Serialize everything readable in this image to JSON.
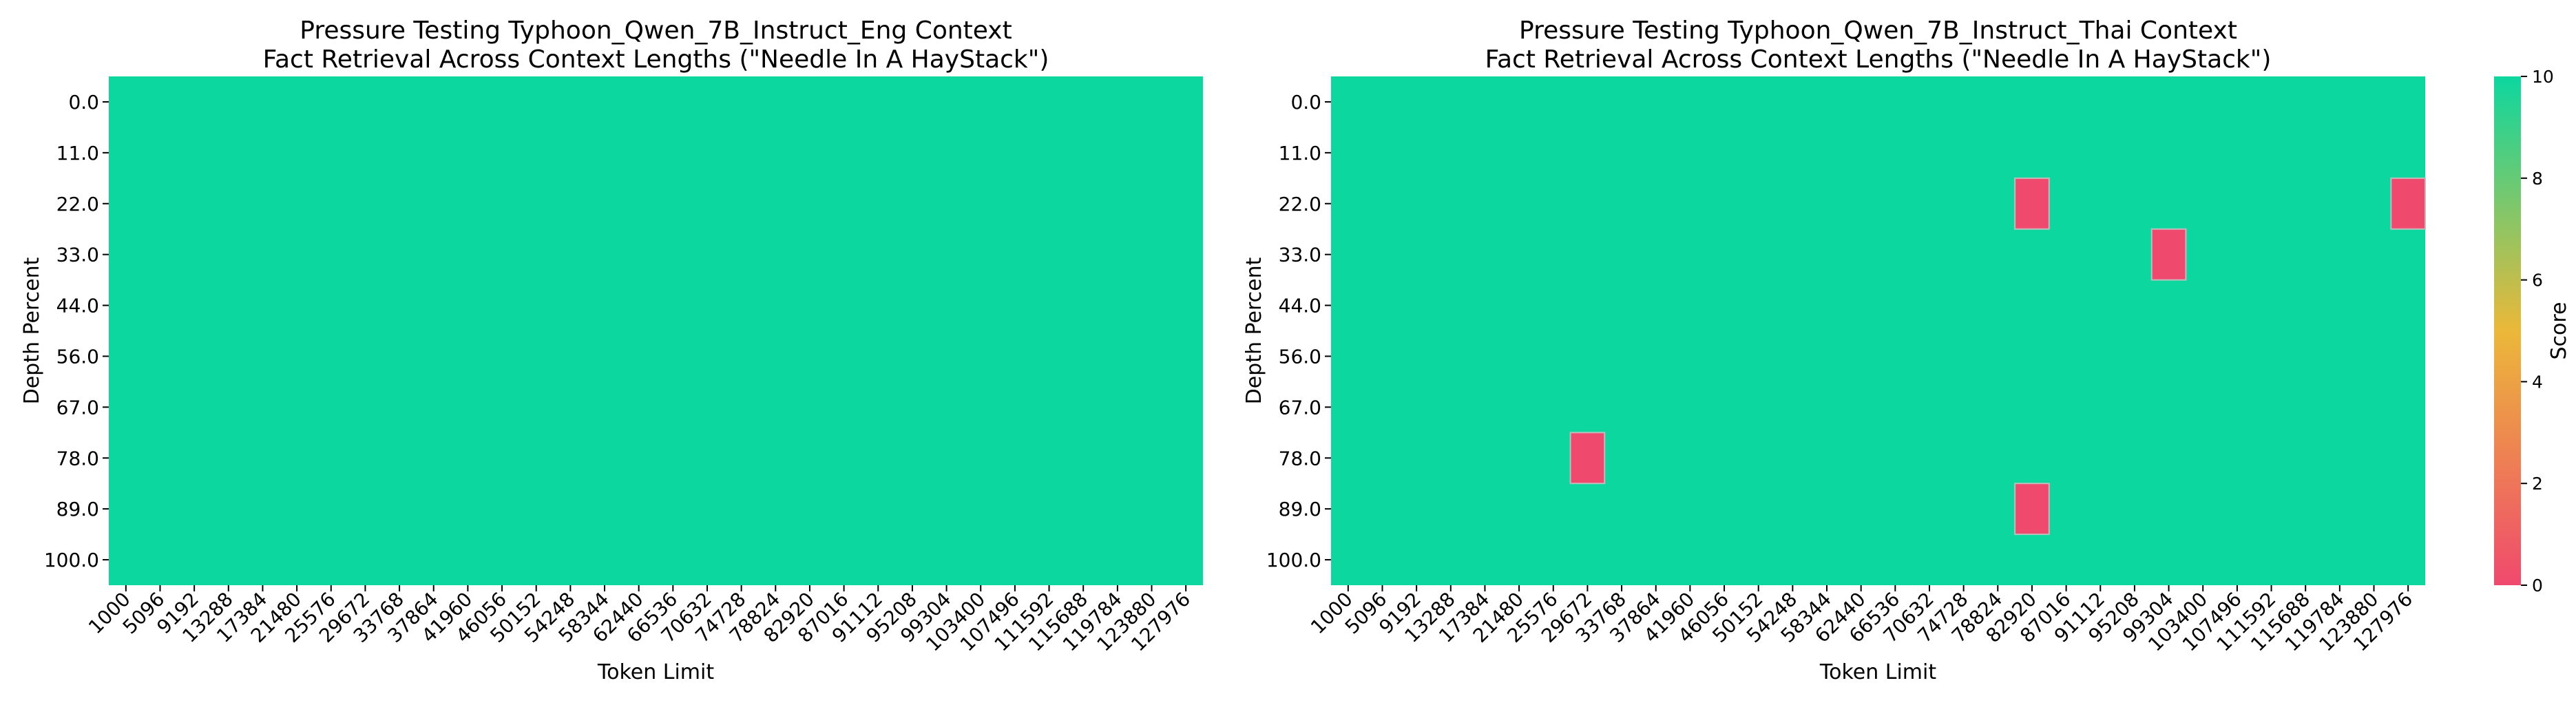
{
  "chart_data": [
    {
      "type": "heatmap",
      "title_line1": "Pressure Testing Typhoon_Qwen_7B_Instruct_Eng Context",
      "title_line2": "Fact Retrieval Across Context Lengths (\"Needle In A HayStack\")",
      "xlabel": "Token Limit",
      "ylabel": "Depth Percent",
      "x": [
        "1000",
        "5096",
        "9192",
        "13288",
        "17384",
        "21480",
        "25576",
        "29672",
        "33768",
        "37864",
        "41960",
        "46056",
        "50152",
        "54248",
        "58344",
        "62440",
        "66536",
        "70632",
        "74728",
        "78824",
        "82920",
        "87016",
        "91112",
        "95208",
        "99304",
        "103400",
        "107496",
        "111592",
        "115688",
        "119784",
        "123880",
        "127976"
      ],
      "y": [
        "0.0",
        "11.0",
        "22.0",
        "33.0",
        "44.0",
        "56.0",
        "67.0",
        "78.0",
        "89.0",
        "100.0"
      ],
      "default_score": 10,
      "exceptions": []
    },
    {
      "type": "heatmap",
      "title_line1": "Pressure Testing Typhoon_Qwen_7B_Instruct_Thai Context",
      "title_line2": "Fact Retrieval Across Context Lengths (\"Needle In A HayStack\")",
      "xlabel": "Token Limit",
      "ylabel": "Depth Percent",
      "x": [
        "1000",
        "5096",
        "9192",
        "13288",
        "17384",
        "21480",
        "25576",
        "29672",
        "33768",
        "37864",
        "41960",
        "46056",
        "50152",
        "54248",
        "58344",
        "62440",
        "66536",
        "70632",
        "74728",
        "78824",
        "82920",
        "87016",
        "91112",
        "95208",
        "99304",
        "103400",
        "107496",
        "111592",
        "115688",
        "119784",
        "123880",
        "127976"
      ],
      "y": [
        "0.0",
        "11.0",
        "22.0",
        "33.0",
        "44.0",
        "56.0",
        "67.0",
        "78.0",
        "89.0",
        "100.0"
      ],
      "default_score": 10,
      "exceptions": [
        {
          "x": "82920",
          "y": "22.0",
          "score": 0
        },
        {
          "x": "127976",
          "y": "22.0",
          "score": 0
        },
        {
          "x": "99304",
          "y": "33.0",
          "score": 0
        },
        {
          "x": "29672",
          "y": "78.0",
          "score": 0
        },
        {
          "x": "82920",
          "y": "89.0",
          "score": 0
        }
      ]
    }
  ],
  "colorbar": {
    "label": "Score",
    "range": [
      0,
      10
    ],
    "ticks": [
      "0",
      "2",
      "4",
      "6",
      "8",
      "10"
    ],
    "colors": [
      "#F0496E",
      "#EBB839",
      "#0CD79F"
    ]
  }
}
